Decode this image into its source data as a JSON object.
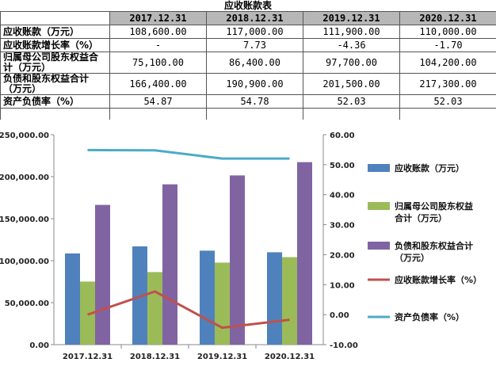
{
  "table": {
    "title": "应收账款表",
    "columns": [
      "2017.12.31",
      "2018.12.31",
      "2019.12.31",
      "2020.12.31"
    ],
    "rows": [
      {
        "label": "应收账款（万元）",
        "values": [
          "108,600.00",
          "117,000.00",
          "111,900.00",
          "110,000.00"
        ]
      },
      {
        "label": "应收账款增长率（%）",
        "values": [
          "-",
          "7.73",
          "-4.36",
          "-1.70"
        ]
      },
      {
        "label": "归属母公司股东权益合计（万元）",
        "values": [
          "75,100.00",
          "86,400.00",
          "97,700.00",
          "104,200.00"
        ]
      },
      {
        "label": "负债和股东权益合计（万元）",
        "values": [
          "166,400.00",
          "190,900.00",
          "201,500.00",
          "217,300.00"
        ]
      },
      {
        "label": "资产负债率（%）",
        "values": [
          "54.87",
          "54.78",
          "52.03",
          "52.03"
        ]
      }
    ]
  },
  "chart_data": {
    "type": "bar",
    "categories": [
      "2017.12.31",
      "2018.12.31",
      "2019.12.31",
      "2020.12.31"
    ],
    "series": [
      {
        "name": "应收账款（万元）",
        "kind": "bar",
        "axis": "left",
        "color": "#4f81bd",
        "values": [
          108600,
          117000,
          111900,
          110000
        ]
      },
      {
        "name": "归属母公司股东权益合计（万元）",
        "kind": "bar",
        "axis": "left",
        "color": "#9bbb59",
        "values": [
          75100,
          86400,
          97700,
          104200
        ]
      },
      {
        "name": "负债和股东权益合计（万元）",
        "kind": "bar",
        "axis": "left",
        "color": "#8064a2",
        "values": [
          166400,
          190900,
          201500,
          217300
        ]
      },
      {
        "name": "应收账款增长率（%）",
        "kind": "line",
        "axis": "right",
        "color": "#c0504d",
        "values": [
          0,
          7.73,
          -4.36,
          -1.7
        ]
      },
      {
        "name": "资产负债率（%）",
        "kind": "line",
        "axis": "right",
        "color": "#4bacc6",
        "values": [
          54.87,
          54.78,
          52.03,
          52.03
        ]
      }
    ],
    "y_left": {
      "min": 0,
      "max": 250000,
      "step": 50000,
      "ticks": [
        "0.00",
        "50,000.00",
        "100,000.00",
        "150,000.00",
        "200,000.00",
        "250,000.00"
      ]
    },
    "y_right": {
      "min": -10,
      "max": 60,
      "step": 10,
      "ticks": [
        "-10.00",
        "0.00",
        "10.00",
        "20.00",
        "30.00",
        "40.00",
        "50.00",
        "60.00"
      ]
    },
    "grid": false,
    "legend_position": "right"
  }
}
